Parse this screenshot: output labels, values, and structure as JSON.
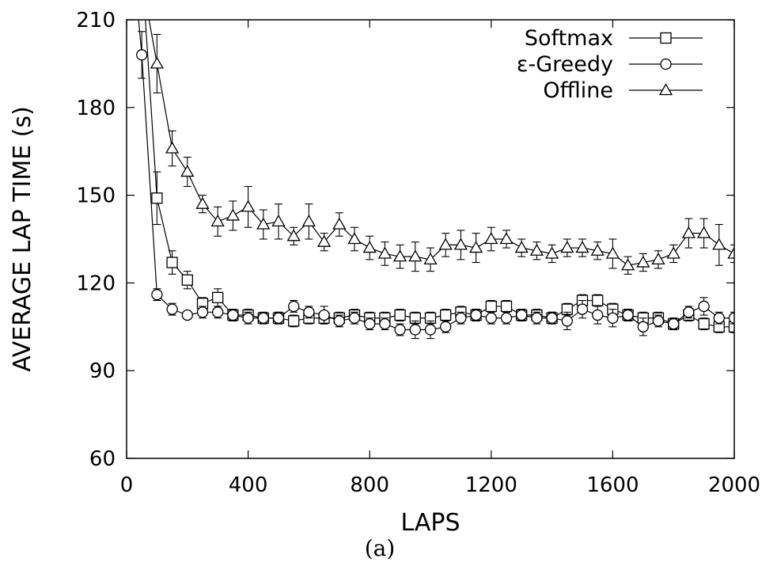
{
  "chart_data": {
    "type": "line",
    "title": "",
    "xlabel": "LAPS",
    "ylabel": "AVERAGE LAP TIME (s)",
    "caption": "(a)",
    "xlim": [
      0,
      2000
    ],
    "ylim": [
      60,
      210
    ],
    "xticks": [
      0,
      400,
      800,
      1200,
      1600,
      2000
    ],
    "yticks": [
      60,
      90,
      120,
      150,
      180,
      210
    ],
    "grid": false,
    "legend_position": "top-right",
    "series": [
      {
        "name": "Softmax",
        "marker": "square",
        "x": [
          100,
          150,
          200,
          250,
          300,
          350,
          400,
          450,
          500,
          550,
          600,
          650,
          700,
          750,
          800,
          850,
          900,
          950,
          1000,
          1050,
          1100,
          1150,
          1200,
          1250,
          1300,
          1350,
          1400,
          1450,
          1500,
          1550,
          1600,
          1650,
          1700,
          1750,
          1800,
          1850,
          1900,
          1950,
          2000
        ],
        "y": [
          149,
          127,
          121,
          113,
          115,
          109,
          109,
          108,
          108,
          107,
          108,
          108,
          108,
          109,
          108,
          108,
          109,
          108,
          108,
          109,
          110,
          109,
          112,
          112,
          109,
          109,
          108,
          111,
          114,
          114,
          111,
          109,
          108,
          108,
          106,
          109,
          106,
          105,
          105
        ],
        "err": [
          9,
          4,
          3,
          2,
          3,
          2,
          2,
          1,
          2,
          2,
          2,
          2,
          2,
          2,
          2,
          2,
          2,
          2,
          2,
          2,
          2,
          2,
          2,
          2,
          2,
          2,
          2,
          2,
          2,
          2,
          2,
          2,
          2,
          2,
          2,
          2,
          2,
          2,
          2
        ]
      },
      {
        "name": "ε-Greedy",
        "marker": "circle",
        "x": [
          50,
          100,
          150,
          200,
          250,
          300,
          350,
          400,
          450,
          500,
          550,
          600,
          650,
          700,
          750,
          800,
          850,
          900,
          950,
          1000,
          1050,
          1100,
          1150,
          1200,
          1250,
          1300,
          1350,
          1400,
          1450,
          1500,
          1550,
          1600,
          1650,
          1700,
          1750,
          1800,
          1850,
          1900,
          1950,
          2000
        ],
        "y": [
          198,
          116,
          111,
          109,
          110,
          110,
          109,
          108,
          108,
          108,
          112,
          110,
          109,
          107,
          108,
          106,
          106,
          104,
          104,
          104,
          105,
          108,
          109,
          108,
          108,
          109,
          108,
          108,
          107,
          111,
          109,
          108,
          109,
          105,
          107,
          106,
          110,
          112,
          108,
          108
        ],
        "err": [
          8,
          2,
          2,
          1,
          2,
          2,
          2,
          2,
          2,
          2,
          2,
          2,
          3,
          2,
          2,
          2,
          2,
          2,
          3,
          3,
          2,
          2,
          2,
          2,
          2,
          2,
          2,
          2,
          3,
          3,
          3,
          3,
          2,
          3,
          2,
          2,
          2,
          3,
          2,
          2
        ]
      },
      {
        "name": "Offline",
        "marker": "triangle",
        "x": [
          100,
          150,
          200,
          250,
          300,
          350,
          400,
          450,
          500,
          550,
          600,
          650,
          700,
          750,
          800,
          850,
          900,
          950,
          1000,
          1050,
          1100,
          1150,
          1200,
          1250,
          1300,
          1350,
          1400,
          1450,
          1500,
          1550,
          1600,
          1650,
          1700,
          1750,
          1800,
          1850,
          1900,
          1950,
          2000
        ],
        "y": [
          195,
          166,
          158,
          147,
          141,
          143,
          146,
          140,
          141,
          136,
          141,
          134,
          140,
          135,
          132,
          130,
          129,
          129,
          128,
          133,
          133,
          132,
          135,
          135,
          132,
          131,
          130,
          132,
          132,
          131,
          130,
          126,
          127,
          128,
          130,
          137,
          137,
          133,
          130
        ],
        "err": [
          10,
          6,
          5,
          3,
          5,
          5,
          7,
          5,
          6,
          3,
          6,
          3,
          4,
          4,
          4,
          4,
          4,
          5,
          4,
          4,
          5,
          5,
          4,
          3,
          3,
          3,
          3,
          3,
          3,
          3,
          5,
          3,
          3,
          3,
          3,
          5,
          5,
          7,
          3
        ]
      }
    ]
  }
}
